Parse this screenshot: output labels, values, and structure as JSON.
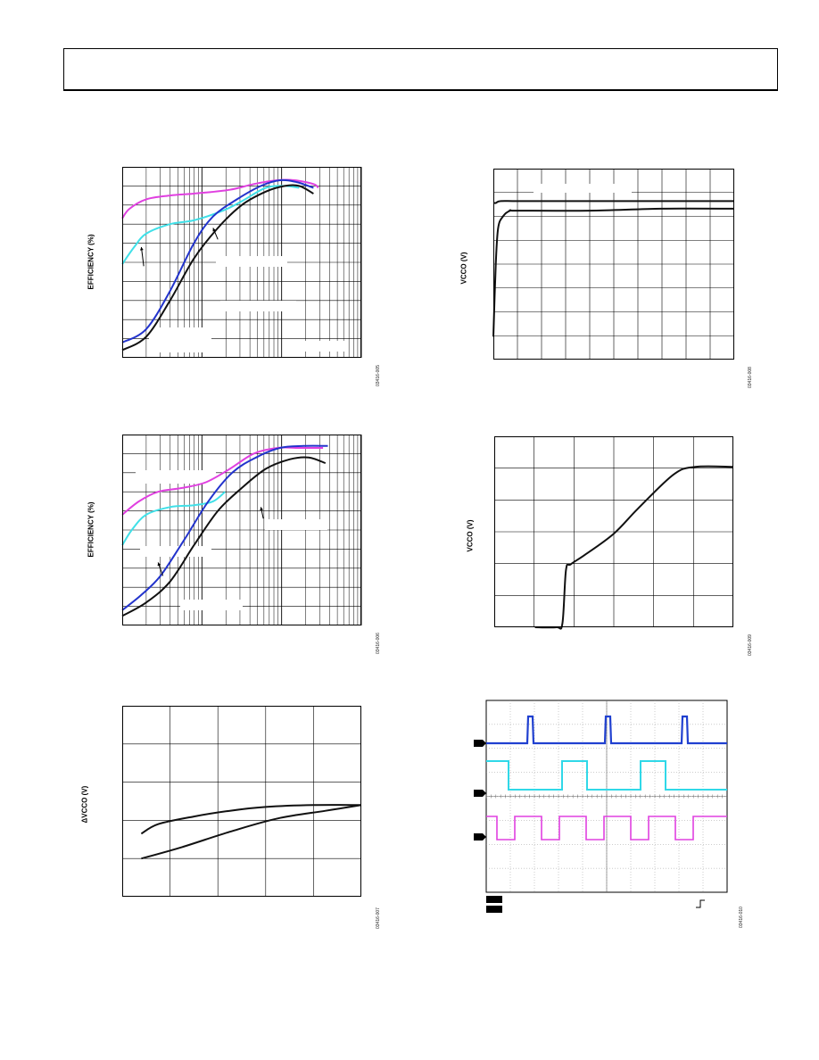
{
  "chart_data": [
    {
      "id": "c1",
      "type": "line",
      "ylabel": "EFFICIENCY (%)",
      "figure_id": "03416-005",
      "x_scale": "log",
      "series": [
        {
          "color": "#e040e0",
          "points": [
            [
              0,
              0.73
            ],
            [
              0.03,
              0.78
            ],
            [
              0.1,
              0.83
            ],
            [
              0.2,
              0.85
            ],
            [
              0.3,
              0.86
            ],
            [
              0.45,
              0.88
            ],
            [
              0.55,
              0.91
            ],
            [
              0.65,
              0.93
            ],
            [
              0.72,
              0.93
            ],
            [
              0.8,
              0.91
            ],
            [
              0.82,
              0.89
            ]
          ]
        },
        {
          "color": "#40e0e8",
          "points": [
            [
              0,
              0.49
            ],
            [
              0.05,
              0.58
            ],
            [
              0.1,
              0.65
            ],
            [
              0.2,
              0.7
            ],
            [
              0.3,
              0.72
            ],
            [
              0.42,
              0.77
            ],
            [
              0.5,
              0.82
            ],
            [
              0.6,
              0.89
            ],
            [
              0.68,
              0.9
            ],
            [
              0.74,
              0.89
            ]
          ]
        },
        {
          "color": "#2233cc",
          "points": [
            [
              0,
              0.08
            ],
            [
              0.1,
              0.15
            ],
            [
              0.2,
              0.35
            ],
            [
              0.3,
              0.6
            ],
            [
              0.38,
              0.74
            ],
            [
              0.48,
              0.83
            ],
            [
              0.58,
              0.9
            ],
            [
              0.66,
              0.93
            ],
            [
              0.73,
              0.92
            ],
            [
              0.8,
              0.89
            ]
          ]
        },
        {
          "color": "#111111",
          "points": [
            [
              0,
              0.04
            ],
            [
              0.1,
              0.11
            ],
            [
              0.2,
              0.3
            ],
            [
              0.3,
              0.52
            ],
            [
              0.4,
              0.68
            ],
            [
              0.5,
              0.8
            ],
            [
              0.6,
              0.87
            ],
            [
              0.68,
              0.9
            ],
            [
              0.74,
              0.9
            ],
            [
              0.8,
              0.86
            ]
          ]
        }
      ],
      "arrows": [
        [
          0.08,
          0.58,
          0.09,
          0.48
        ],
        [
          0.38,
          0.68,
          0.4,
          0.62
        ]
      ]
    },
    {
      "id": "c2",
      "type": "line",
      "ylabel": "EFFICIENCY (%)",
      "figure_id": "03416-006",
      "x_scale": "log",
      "series": [
        {
          "color": "#e040e0",
          "points": [
            [
              0,
              0.58
            ],
            [
              0.07,
              0.65
            ],
            [
              0.15,
              0.7
            ],
            [
              0.25,
              0.72
            ],
            [
              0.35,
              0.75
            ],
            [
              0.45,
              0.82
            ],
            [
              0.55,
              0.9
            ],
            [
              0.65,
              0.93
            ],
            [
              0.74,
              0.93
            ],
            [
              0.84,
              0.93
            ]
          ]
        },
        {
          "color": "#40e0e8",
          "points": [
            [
              0,
              0.42
            ],
            [
              0.04,
              0.5
            ],
            [
              0.1,
              0.58
            ],
            [
              0.2,
              0.62
            ],
            [
              0.3,
              0.63
            ],
            [
              0.38,
              0.65
            ],
            [
              0.43,
              0.7
            ]
          ]
        },
        {
          "color": "#2233cc",
          "points": [
            [
              0,
              0.08
            ],
            [
              0.08,
              0.16
            ],
            [
              0.16,
              0.26
            ],
            [
              0.26,
              0.45
            ],
            [
              0.36,
              0.65
            ],
            [
              0.46,
              0.8
            ],
            [
              0.56,
              0.88
            ],
            [
              0.66,
              0.93
            ],
            [
              0.76,
              0.94
            ],
            [
              0.86,
              0.94
            ]
          ]
        },
        {
          "color": "#111111",
          "points": [
            [
              0,
              0.05
            ],
            [
              0.1,
              0.12
            ],
            [
              0.2,
              0.23
            ],
            [
              0.3,
              0.42
            ],
            [
              0.4,
              0.6
            ],
            [
              0.5,
              0.72
            ],
            [
              0.6,
              0.82
            ],
            [
              0.7,
              0.87
            ],
            [
              0.78,
              0.88
            ],
            [
              0.85,
              0.85
            ]
          ]
        }
      ],
      "arrows": [
        [
          0.15,
          0.33,
          0.17,
          0.26
        ],
        [
          0.58,
          0.62,
          0.59,
          0.56
        ]
      ]
    },
    {
      "id": "c3",
      "type": "line",
      "ylabel": "ΔVCCO (V)",
      "figure_id": "03416-007",
      "series": [
        {
          "color": "#111111",
          "points": [
            [
              0.08,
              0.33
            ],
            [
              0.15,
              0.38
            ],
            [
              0.3,
              0.42
            ],
            [
              0.45,
              0.45
            ],
            [
              0.6,
              0.47
            ],
            [
              0.8,
              0.48
            ],
            [
              1.0,
              0.48
            ]
          ]
        },
        {
          "color": "#111111",
          "points": [
            [
              0.08,
              0.2
            ],
            [
              0.25,
              0.26
            ],
            [
              0.45,
              0.34
            ],
            [
              0.65,
              0.41
            ],
            [
              0.85,
              0.45
            ],
            [
              1.0,
              0.48
            ]
          ]
        }
      ]
    },
    {
      "id": "c4",
      "type": "line",
      "ylabel": "VCCO (V)",
      "figure_id": "03416-008",
      "series": [
        {
          "color": "#111111",
          "points": [
            [
              0,
              0.82
            ],
            [
              0.005,
              0.82
            ],
            [
              0.01,
              0.82
            ],
            [
              0.03,
              0.83
            ],
            [
              0.1,
              0.83
            ],
            [
              0.3,
              0.83
            ],
            [
              0.6,
              0.83
            ],
            [
              1.0,
              0.83
            ]
          ]
        },
        {
          "color": "#111111",
          "points": [
            [
              0,
              0.12
            ],
            [
              0.01,
              0.5
            ],
            [
              0.02,
              0.69
            ],
            [
              0.04,
              0.75
            ],
            [
              0.07,
              0.78
            ],
            [
              0.1,
              0.78
            ],
            [
              0.4,
              0.78
            ],
            [
              0.7,
              0.79
            ],
            [
              1.0,
              0.79
            ]
          ]
        }
      ]
    },
    {
      "id": "c5",
      "type": "line",
      "ylabel": "VCCO (V)",
      "figure_id": "03416-009",
      "series": [
        {
          "color": "#111111",
          "points": [
            [
              0.17,
              0.0
            ],
            [
              0.26,
              0.0
            ],
            [
              0.285,
              0.02
            ],
            [
              0.3,
              0.3
            ],
            [
              0.32,
              0.33
            ],
            [
              0.38,
              0.38
            ],
            [
              0.5,
              0.49
            ],
            [
              0.6,
              0.62
            ],
            [
              0.75,
              0.8
            ],
            [
              0.84,
              0.84
            ],
            [
              1.0,
              0.84
            ]
          ]
        }
      ]
    },
    {
      "id": "c6",
      "type": "line",
      "ylabel": "",
      "figure_id": "03416-010",
      "series": [
        {
          "color": "#2040d0",
          "name": "ch1"
        },
        {
          "color": "#30d8e8",
          "name": "ch2"
        },
        {
          "color": "#e040e0",
          "name": "ch3"
        }
      ]
    }
  ]
}
